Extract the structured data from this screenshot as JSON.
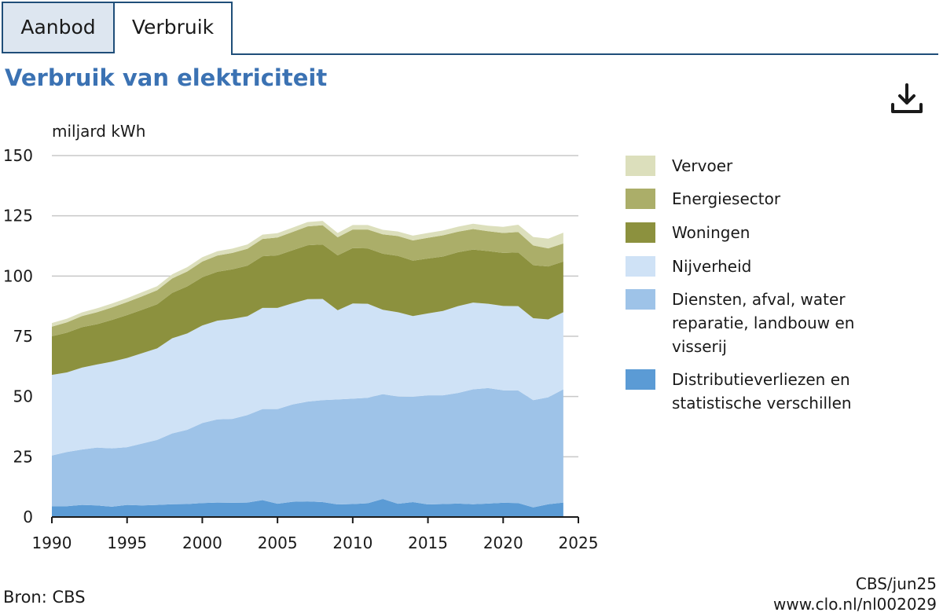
{
  "tabs": [
    {
      "label": "Aanbod",
      "active": false
    },
    {
      "label": "Verbruik",
      "active": true
    }
  ],
  "title": "Verbruik van elektriciteit",
  "download_icon": "download-icon",
  "chart_data": {
    "type": "area",
    "stacked": true,
    "ylabel": "miljard kWh",
    "xlim": [
      1990,
      2025
    ],
    "ylim": [
      0,
      150
    ],
    "xticks": [
      1990,
      1995,
      2000,
      2005,
      2010,
      2015,
      2020,
      2025
    ],
    "yticks": [
      0,
      25,
      50,
      75,
      100,
      125,
      150
    ],
    "x": [
      1990,
      1991,
      1992,
      1993,
      1994,
      1995,
      1996,
      1997,
      1998,
      1999,
      2000,
      2001,
      2002,
      2003,
      2004,
      2005,
      2006,
      2007,
      2008,
      2009,
      2010,
      2011,
      2012,
      2013,
      2014,
      2015,
      2016,
      2017,
      2018,
      2019,
      2020,
      2021,
      2022,
      2023,
      2024
    ],
    "series": [
      {
        "name": "Distributieverliezen en statistische verschillen",
        "color": "#5b9bd5",
        "values": [
          4.5,
          4.5,
          5,
          4.8,
          4.3,
          5,
          4.8,
          5,
          5.3,
          5.4,
          5.8,
          6,
          5.9,
          6,
          7,
          5.5,
          6.3,
          6.5,
          6.2,
          5.2,
          5.4,
          5.7,
          7.5,
          5.5,
          6.2,
          5.2,
          5.4,
          5.6,
          5.3,
          5.6,
          5.9,
          5.8,
          4,
          5.3,
          6
        ]
      },
      {
        "name": "Diensten, afval, water reparatie, landbouw en visserij",
        "color": "#9ec3e8",
        "values": [
          21,
          22.5,
          23,
          24,
          24.2,
          24,
          25.7,
          27,
          29.4,
          30.8,
          33.2,
          34.5,
          34.8,
          36.3,
          37.8,
          39.3,
          40.4,
          41.4,
          42.3,
          43.6,
          43.7,
          43.8,
          43.5,
          44.5,
          43.7,
          45.3,
          45.1,
          45.9,
          47.7,
          47.9,
          46.7,
          46.7,
          44.5,
          44.4,
          47
        ]
      },
      {
        "name": "Nijverheid",
        "color": "#cfe2f6",
        "values": [
          33.5,
          33,
          34,
          34.5,
          36,
          37,
          37.5,
          38,
          39.5,
          40,
          40.5,
          41,
          41.5,
          41,
          42,
          42,
          42,
          42.5,
          42,
          37,
          39.5,
          39,
          35,
          35,
          33.5,
          34,
          35,
          36,
          36,
          35,
          35,
          35,
          34,
          32.3,
          32
        ]
      },
      {
        "name": "Woningen",
        "color": "#8c913e",
        "values": [
          16,
          16.5,
          16.8,
          16.7,
          17.3,
          17.8,
          18,
          18.3,
          18.8,
          19.5,
          20,
          20.3,
          20.6,
          21,
          21.4,
          21.8,
          22,
          22.4,
          22.6,
          22.8,
          23,
          23,
          23.3,
          23.4,
          23,
          22.8,
          22.6,
          22.4,
          22,
          21.9,
          22,
          22.3,
          22,
          22,
          21
        ]
      },
      {
        "name": "Energiesector",
        "color": "#abae69",
        "values": [
          4,
          4.3,
          4.6,
          5,
          5.2,
          5.4,
          5.6,
          5.8,
          6,
          6.2,
          6.5,
          6.7,
          6.8,
          7,
          7.2,
          7.4,
          7.6,
          7.8,
          8,
          7.5,
          7.7,
          7.8,
          8,
          8.2,
          8.4,
          8.6,
          8.8,
          8.5,
          8.5,
          8.2,
          8.3,
          8.5,
          8.2,
          7.5,
          7.5
        ]
      },
      {
        "name": "Vervoer",
        "color": "#dcdfbc",
        "values": [
          1.5,
          1.5,
          1.5,
          1.6,
          1.6,
          1.6,
          1.7,
          1.7,
          1.7,
          1.8,
          1.8,
          1.8,
          1.8,
          1.8,
          1.8,
          1.8,
          1.8,
          1.8,
          1.8,
          1.8,
          1.9,
          1.9,
          1.9,
          1.9,
          2,
          2,
          2,
          2.1,
          2.2,
          2.3,
          2.5,
          3,
          3.5,
          4,
          4.5
        ]
      }
    ],
    "legend": [
      {
        "label": "Vervoer",
        "color": "#dcdfbc"
      },
      {
        "label": "Energiesector",
        "color": "#abae69"
      },
      {
        "label": "Woningen",
        "color": "#8c913e"
      },
      {
        "label": "Nijverheid",
        "color": "#cfe2f6"
      },
      {
        "label": "Diensten, afval, water reparatie, landbouw en visserij",
        "color": "#9ec3e8"
      },
      {
        "label": "Distributieverliezen en statistische verschillen",
        "color": "#5b9bd5"
      }
    ],
    "legend_position": "right"
  },
  "footer": {
    "source": "Bron: CBS",
    "date": "CBS/jun25",
    "url": "www.clo.nl/nl002029"
  }
}
